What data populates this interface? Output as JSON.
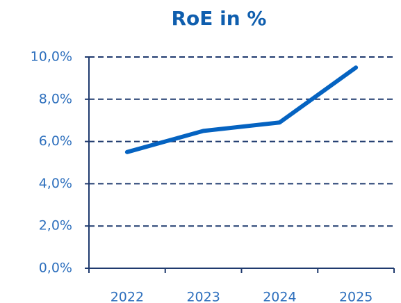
{
  "chart_data": {
    "type": "line",
    "title": "RoE in %",
    "categories": [
      "2022",
      "2023",
      "2024",
      "2025"
    ],
    "values": [
      5.5,
      6.5,
      6.9,
      9.5
    ],
    "color": "#0563c1",
    "ylim": [
      0,
      10
    ],
    "yticks": [
      {
        "value": 0,
        "label": "0,0%"
      },
      {
        "value": 2,
        "label": "2,0%"
      },
      {
        "value": 4,
        "label": "4,0%"
      },
      {
        "value": 6,
        "label": "6,0%"
      },
      {
        "value": 8,
        "label": "8,0%"
      },
      {
        "value": 10,
        "label": "10,0%"
      }
    ],
    "grid": true
  }
}
